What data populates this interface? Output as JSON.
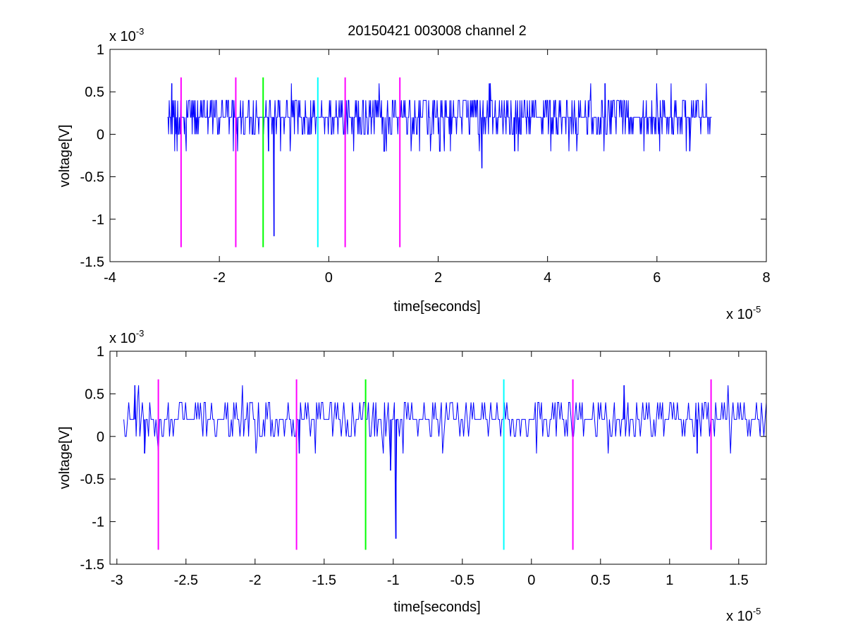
{
  "figure": {
    "title": "20150421 003008 channel 2"
  },
  "colors": {
    "signal": "#0000ff",
    "magenta": "#ff00ff",
    "green": "#00ff00",
    "cyan": "#00ffff",
    "axis": "#000000"
  },
  "chart_data": [
    {
      "type": "line",
      "title": "20150421 003008 channel 2",
      "xlabel": "time[seconds]",
      "ylabel": "voltage[V]",
      "x_exponent_label": "x 10",
      "x_exponent": "-5",
      "y_exponent_label": "x 10",
      "y_exponent": "-3",
      "xlim": [
        -4,
        8
      ],
      "ylim": [
        -1.5,
        1
      ],
      "xticks": [
        -4,
        -2,
        0,
        2,
        4,
        6,
        8
      ],
      "xtick_labels": [
        "-4",
        "-2",
        "0",
        "2",
        "4",
        "6",
        "8"
      ],
      "yticks": [
        1,
        0.5,
        0,
        -0.5,
        -1,
        -1.5
      ],
      "ytick_labels": [
        "1",
        "0.5",
        "0",
        "-0.5",
        "-1",
        "-1.5"
      ],
      "grid": false,
      "series": [
        {
          "color": "#0000ff",
          "x_range": [
            -2.95,
            7.0
          ],
          "baseline": 0.2,
          "levels": [
            -0.2,
            0,
            0.2,
            0.4,
            0.6
          ],
          "spikes": [
            {
              "x": -2.87,
              "y": 0.6
            },
            {
              "x": -1.0,
              "y": -1.2
            },
            {
              "x": -1.1,
              "y": -0.2
            },
            {
              "x": 2.8,
              "y": -0.4
            },
            {
              "x": 2.95,
              "y": 0.6
            },
            {
              "x": 5.05,
              "y": 0.6
            },
            {
              "x": 3.4,
              "y": -0.2
            },
            {
              "x": 6.6,
              "y": -0.2
            }
          ]
        }
      ],
      "markers": [
        {
          "x": -2.7,
          "color": "#ff00ff"
        },
        {
          "x": -1.7,
          "color": "#ff00ff"
        },
        {
          "x": -1.2,
          "color": "#00ff00"
        },
        {
          "x": -0.2,
          "color": "#00ffff"
        },
        {
          "x": 0.3,
          "color": "#ff00ff"
        },
        {
          "x": 1.3,
          "color": "#ff00ff"
        }
      ],
      "marker_range": [
        -1.33,
        0.67
      ]
    },
    {
      "type": "line",
      "title": "",
      "xlabel": "time[seconds]",
      "ylabel": "voltage[V]",
      "x_exponent_label": "x 10",
      "x_exponent": "-5",
      "y_exponent_label": "x 10",
      "y_exponent": "-3",
      "xlim": [
        -3.05,
        1.7
      ],
      "ylim": [
        -1.5,
        1
      ],
      "xticks": [
        -3,
        -2.5,
        -2,
        -1.5,
        -1,
        -0.5,
        0,
        0.5,
        1,
        1.5
      ],
      "xtick_labels": [
        "-3",
        "-2.5",
        "-2",
        "-1.5",
        "-1",
        "-0.5",
        "0",
        "0.5",
        "1",
        "1.5"
      ],
      "yticks": [
        1,
        0.5,
        0,
        -0.5,
        -1,
        -1.5
      ],
      "ytick_labels": [
        "1",
        "0.5",
        "0",
        "-0.5",
        "-1",
        "-1.5"
      ],
      "grid": false,
      "series": [
        {
          "color": "#0000ff",
          "x_range": [
            -2.95,
            1.7
          ],
          "baseline": 0.2,
          "levels": [
            -0.2,
            0,
            0.2,
            0.4,
            0.6
          ],
          "spikes": [
            {
              "x": -2.87,
              "y": 0.6
            },
            {
              "x": -0.98,
              "y": -1.2
            },
            {
              "x": -1.02,
              "y": -0.4
            },
            {
              "x": 0.67,
              "y": 0.6
            },
            {
              "x": -2.8,
              "y": -0.2
            },
            {
              "x": -1.68,
              "y": -0.2
            },
            {
              "x": 1.2,
              "y": -0.2
            }
          ]
        }
      ],
      "markers": [
        {
          "x": -2.7,
          "color": "#ff00ff"
        },
        {
          "x": -1.7,
          "color": "#ff00ff"
        },
        {
          "x": -1.2,
          "color": "#00ff00"
        },
        {
          "x": -0.2,
          "color": "#00ffff"
        },
        {
          "x": 0.3,
          "color": "#ff00ff"
        },
        {
          "x": 1.3,
          "color": "#ff00ff"
        }
      ],
      "marker_range": [
        -1.33,
        0.67
      ]
    }
  ]
}
